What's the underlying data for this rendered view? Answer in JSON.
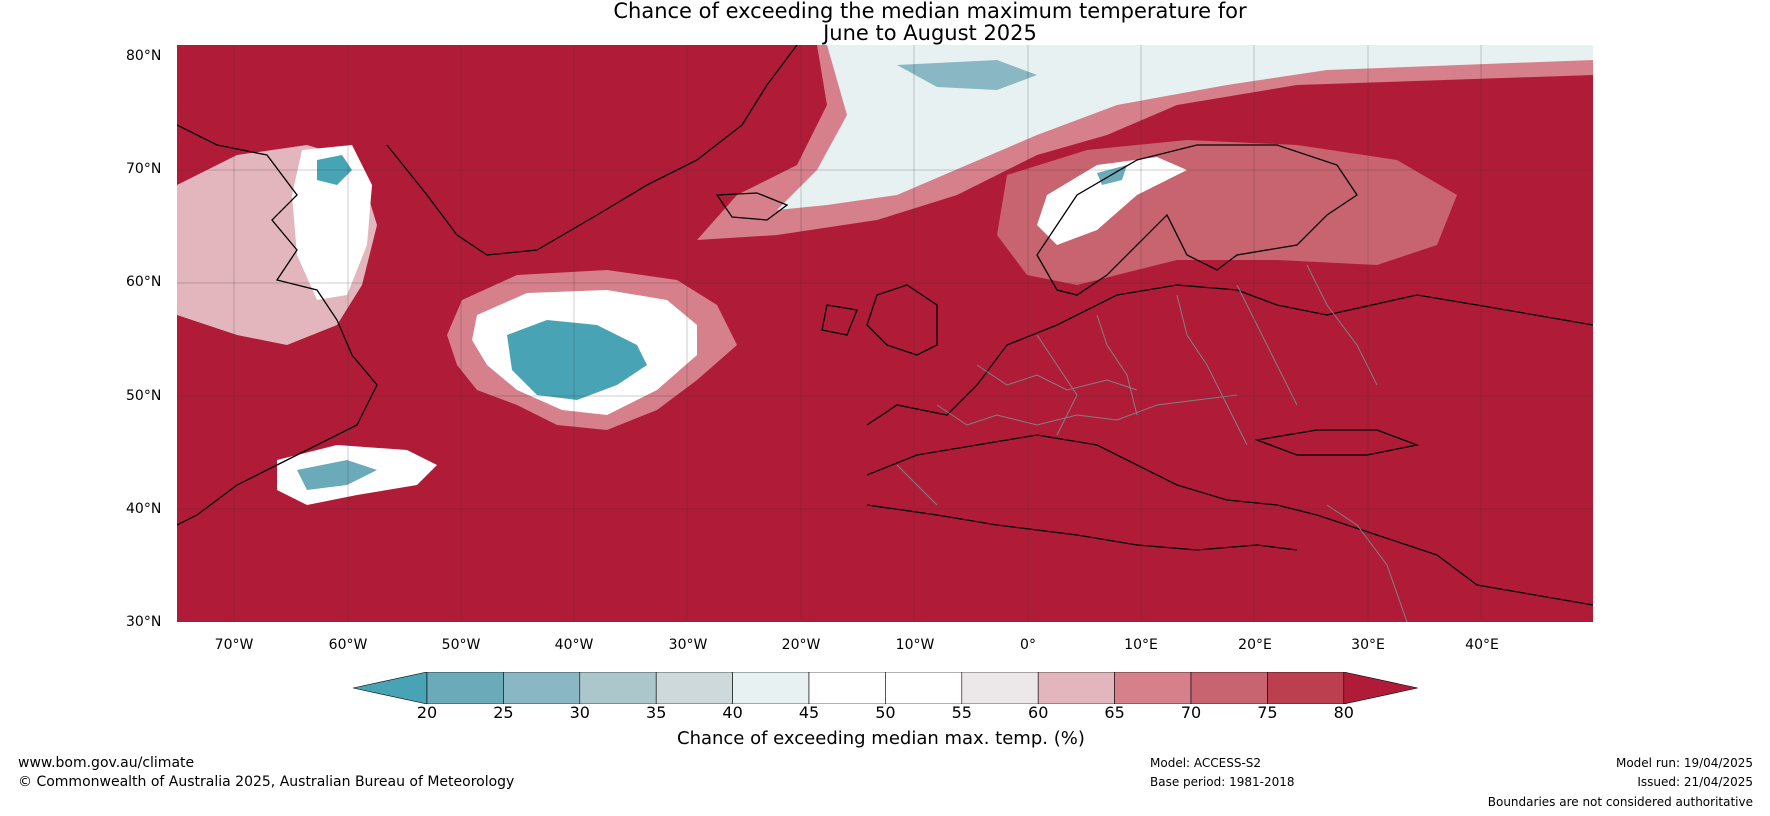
{
  "title": {
    "line1": "Chance of exceeding the median maximum temperature for",
    "line2": "June to August 2025"
  },
  "map": {
    "latitude_labels": [
      "80°N",
      "70°N",
      "60°N",
      "50°N",
      "40°N",
      "30°N"
    ],
    "longitude_labels": [
      "70°W",
      "60°W",
      "50°W",
      "40°W",
      "30°W",
      "20°W",
      "10°W",
      "0°",
      "10°E",
      "20°E",
      "30°E",
      "40°E"
    ],
    "background_color": "#b01c38",
    "coast_color": "#000000",
    "border_color": "#808080"
  },
  "colorbar": {
    "ticks": [
      "20",
      "25",
      "30",
      "35",
      "40",
      "45",
      "50",
      "55",
      "60",
      "65",
      "70",
      "75",
      "80"
    ],
    "colors": [
      "#48a3b4",
      "#6aaab9",
      "#89b7c3",
      "#acc7cc",
      "#cdd9da",
      "#e8f1f2",
      "#ffffff",
      "#ffffff",
      "#ece8e9",
      "#e2b6bc",
      "#d5808b",
      "#c7646f",
      "#bb3f4f",
      "#b01c38"
    ],
    "label": "Chance of exceeding median max. temp. (%)"
  },
  "footer": {
    "url": "www.bom.gov.au/climate",
    "copyright": "© Commonwealth of Australia 2025, Australian Bureau of Meteorology",
    "model": "Model: ACCESS-S2",
    "base_period": "Base period: 1981-2018",
    "model_run": "Model run: 19/04/2025",
    "issued": "Issued: 21/04/2025",
    "disclaimer": "Boundaries are not considered authoritative"
  }
}
